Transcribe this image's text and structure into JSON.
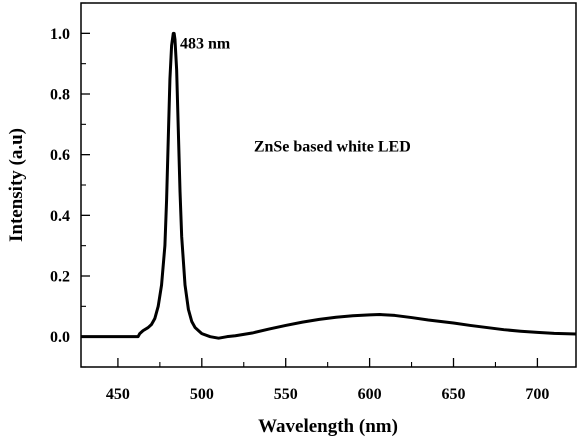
{
  "chart_data": {
    "type": "line",
    "xlabel": "Wavelength (nm)",
    "ylabel": "Intensity (a.u)",
    "xlim": [
      428,
      723
    ],
    "ylim": [
      -0.1,
      1.1
    ],
    "x_ticks": [
      450,
      500,
      550,
      600,
      650,
      700
    ],
    "y_ticks": [
      0.0,
      0.2,
      0.4,
      0.6,
      0.8,
      1.0
    ],
    "x_tick_labels": [
      "450",
      "500",
      "550",
      "600",
      "650",
      "700"
    ],
    "y_tick_labels": [
      "0.0",
      "0.2",
      "0.4",
      "0.6",
      "0.8",
      "1.0"
    ],
    "grid": false,
    "annotations": [
      {
        "text": "483 nm",
        "x": 487,
        "y": 0.97
      },
      {
        "text": "ZnSe based white LED",
        "x": 531,
        "y": 0.63
      }
    ],
    "series": [
      {
        "x": [
          428,
          440,
          450,
          455,
          460,
          462,
          463,
          465,
          468,
          470,
          472,
          474,
          476,
          478,
          479,
          480,
          481,
          482,
          483,
          483.5,
          484,
          485,
          486,
          487,
          488,
          490,
          492,
          494,
          496,
          498,
          500,
          505,
          510,
          515,
          520,
          530,
          540,
          550,
          560,
          570,
          580,
          590,
          600,
          606,
          615,
          625,
          635,
          650,
          660,
          670,
          680,
          690,
          700,
          710,
          723
        ],
        "y": [
          0.0,
          0.0,
          0.0,
          0.0,
          0.0,
          0.0,
          0.01,
          0.02,
          0.03,
          0.04,
          0.06,
          0.1,
          0.17,
          0.3,
          0.45,
          0.65,
          0.85,
          0.96,
          1.0,
          1.0,
          0.98,
          0.88,
          0.68,
          0.48,
          0.33,
          0.17,
          0.09,
          0.05,
          0.03,
          0.02,
          0.01,
          0.0,
          -0.005,
          0.0,
          0.003,
          0.012,
          0.025,
          0.037,
          0.048,
          0.057,
          0.064,
          0.069,
          0.072,
          0.073,
          0.07,
          0.063,
          0.055,
          0.045,
          0.037,
          0.03,
          0.023,
          0.018,
          0.014,
          0.011,
          0.009
        ]
      }
    ]
  }
}
